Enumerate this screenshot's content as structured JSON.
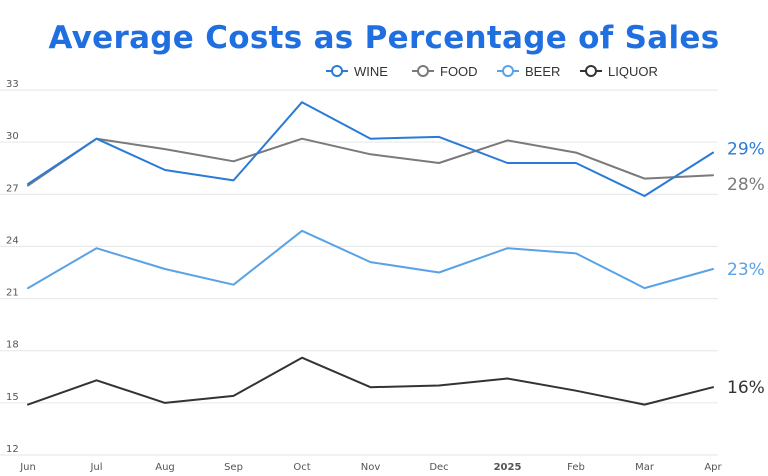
{
  "chart_data": {
    "type": "line",
    "title": "Average Costs as Percentage of Sales",
    "categories": [
      "Jun",
      "Jul",
      "Aug",
      "Sep",
      "Oct",
      "Nov",
      "Dec",
      "2025",
      "Feb",
      "Mar",
      "Apr"
    ],
    "bold_categories": [
      "2025"
    ],
    "ylim": [
      12,
      33
    ],
    "yticks": [
      12,
      15,
      18,
      21,
      24,
      27,
      30,
      33
    ],
    "legend_position": "top-right",
    "series": [
      {
        "key": "wine",
        "name": "WINE",
        "color": "#2a7bd6",
        "values": [
          27.6,
          30.2,
          28.4,
          27.8,
          32.3,
          30.2,
          30.3,
          28.8,
          28.8,
          26.9,
          29.4
        ],
        "end_label": "29%"
      },
      {
        "key": "food",
        "name": "FOOD",
        "color": "#7a7a7a",
        "values": [
          27.5,
          30.2,
          29.6,
          28.9,
          30.2,
          29.3,
          28.8,
          30.1,
          29.4,
          27.9,
          28.1
        ],
        "end_label": "28%"
      },
      {
        "key": "beer",
        "name": "BEER",
        "color": "#5aa2e6",
        "values": [
          21.6,
          23.9,
          22.7,
          21.8,
          24.9,
          23.1,
          22.5,
          23.9,
          23.6,
          21.6,
          22.7
        ],
        "end_label": "23%"
      },
      {
        "key": "liquor",
        "name": "LIQUOR",
        "color": "#333333",
        "values": [
          14.9,
          16.3,
          15.0,
          15.4,
          17.6,
          15.9,
          16.0,
          16.4,
          15.7,
          14.9,
          15.9
        ],
        "end_label": "16%"
      }
    ]
  }
}
